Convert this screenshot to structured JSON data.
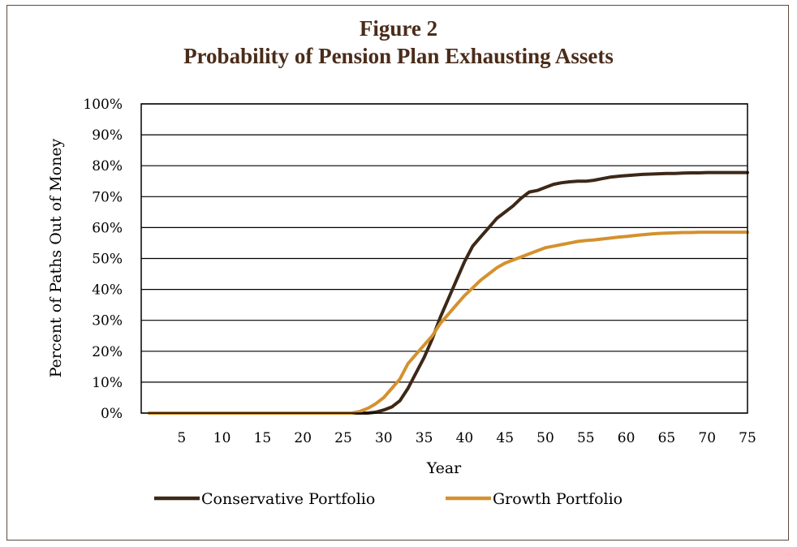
{
  "header": {
    "title": "Figure 2",
    "subtitle": "Probability of Pension Plan Exhausting Assets"
  },
  "chart_data": {
    "type": "line",
    "title": "Figure 2",
    "subtitle": "Probability of Pension Plan Exhausting Assets",
    "xlabel": "Year",
    "ylabel": "Percent of Paths Out of Money",
    "xlim": [
      0,
      75
    ],
    "ylim": [
      0,
      100
    ],
    "x_ticks": [
      5,
      10,
      15,
      20,
      25,
      30,
      35,
      40,
      45,
      50,
      55,
      60,
      65,
      70,
      75
    ],
    "y_ticks": [
      "0%",
      "10%",
      "20%",
      "30%",
      "40%",
      "50%",
      "60%",
      "70%",
      "80%",
      "90%",
      "100%"
    ],
    "y_tick_values": [
      0,
      10,
      20,
      30,
      40,
      50,
      60,
      70,
      80,
      90,
      100
    ],
    "grid": "horizontal",
    "legend_position": "bottom",
    "colors": {
      "conservative": "#3d2817",
      "growth": "#d4912e"
    },
    "series": [
      {
        "name": "Conservative Portfolio",
        "color": "#3d2817",
        "x": [
          1,
          25,
          28,
          29,
          30,
          31,
          32,
          33,
          34,
          35,
          36,
          37,
          38,
          39,
          40,
          41,
          42,
          43,
          44,
          45,
          46,
          47,
          48,
          49,
          50,
          51,
          52,
          53,
          54,
          55,
          56,
          57,
          58,
          59,
          60,
          61,
          62,
          63,
          64,
          65,
          66,
          67,
          68,
          69,
          70,
          71,
          72,
          73,
          74,
          75
        ],
        "y": [
          0,
          0,
          0,
          0.3,
          1,
          2,
          4,
          8,
          13,
          18,
          24,
          31,
          37,
          43,
          49,
          54,
          57,
          60,
          63,
          65,
          67,
          69.5,
          71.5,
          72,
          73,
          74,
          74.5,
          74.8,
          75,
          75,
          75.3,
          75.8,
          76.3,
          76.6,
          76.8,
          77,
          77.2,
          77.3,
          77.4,
          77.5,
          77.5,
          77.6,
          77.7,
          77.7,
          77.8,
          77.8,
          77.8,
          77.8,
          77.8,
          77.8
        ]
      },
      {
        "name": "Growth Portfolio",
        "color": "#d4912e",
        "x": [
          1,
          25,
          26,
          27,
          28,
          29,
          30,
          31,
          32,
          33,
          34,
          35,
          36,
          37,
          38,
          39,
          40,
          41,
          42,
          43,
          44,
          45,
          46,
          47,
          48,
          49,
          50,
          51,
          52,
          53,
          54,
          55,
          56,
          57,
          58,
          59,
          60,
          61,
          62,
          63,
          64,
          65,
          66,
          67,
          68,
          69,
          70,
          71,
          72,
          73,
          74,
          75
        ],
        "y": [
          0,
          0,
          0,
          0.5,
          1.5,
          3,
          5,
          8,
          11,
          16,
          19,
          22,
          25,
          29,
          32,
          35,
          38,
          40.5,
          43,
          45,
          47,
          48.5,
          49.5,
          50.5,
          51.5,
          52.5,
          53.5,
          54,
          54.5,
          55,
          55.5,
          55.8,
          56,
          56.3,
          56.6,
          56.9,
          57.1,
          57.4,
          57.7,
          57.9,
          58.1,
          58.2,
          58.3,
          58.4,
          58.4,
          58.5,
          58.5,
          58.5,
          58.5,
          58.5,
          58.5,
          58.5
        ]
      }
    ]
  }
}
